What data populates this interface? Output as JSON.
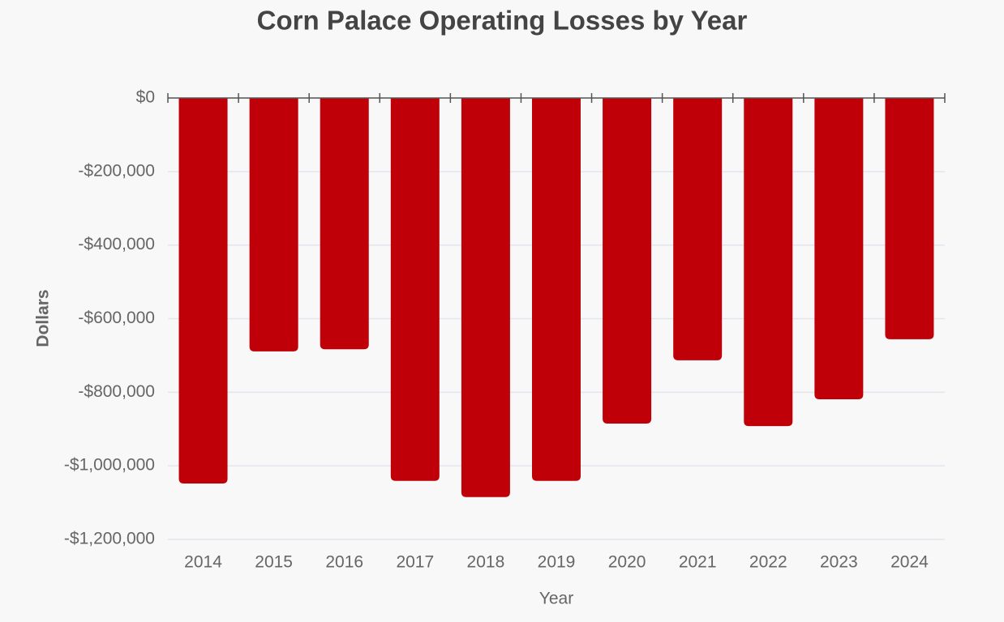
{
  "chart_data": {
    "type": "bar",
    "title": "Corn Palace Operating Losses by Year",
    "x_label": "Year",
    "y_label": "Dollars",
    "categories": [
      "2014",
      "2015",
      "2016",
      "2017",
      "2018",
      "2019",
      "2020",
      "2021",
      "2022",
      "2023",
      "2024"
    ],
    "values": [
      -1048000,
      -689000,
      -683000,
      -1041000,
      -1085000,
      -1041000,
      -885000,
      -713000,
      -892000,
      -819000,
      -656000
    ],
    "color": "#c00008",
    "ylim": [
      -1200000,
      0
    ],
    "yticks": [
      {
        "value": -1200000,
        "label": "-$1,200,000"
      },
      {
        "value": -1000000,
        "label": "-$1,000,000"
      },
      {
        "value": -800000,
        "label": "-$800,000"
      },
      {
        "value": -600000,
        "label": "-$600,000"
      },
      {
        "value": -400000,
        "label": "-$400,000"
      },
      {
        "value": -200000,
        "label": "-$200,000"
      },
      {
        "value": 0,
        "label": "$0"
      }
    ],
    "grid": true
  }
}
